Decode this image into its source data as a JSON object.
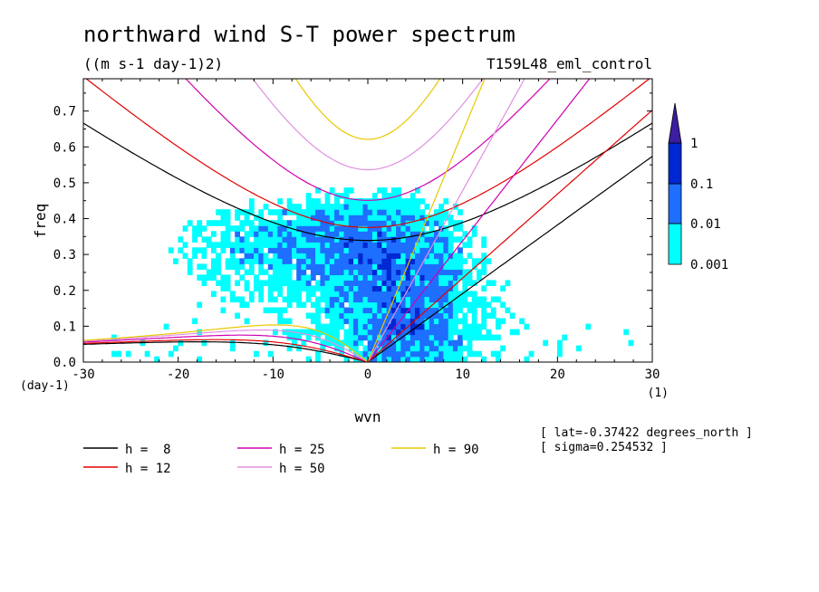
{
  "chart_data": {
    "type": "heatmap",
    "title": "northward wind S-T power spectrum",
    "subtitle": "((m s-1 day-1)2)",
    "run_label": "T159L48_eml_control",
    "xlabel": "wvn",
    "ylabel": "freq",
    "x_unit": "(1)",
    "y_unit": "(day-1)",
    "xlim": [
      -30,
      30
    ],
    "ylim": [
      0,
      0.79
    ],
    "x_ticks": [
      -30,
      -20,
      -10,
      0,
      10,
      20,
      30
    ],
    "x_tick_labels": [
      "-30",
      "-20",
      "-10",
      "0",
      "10",
      "20",
      "30"
    ],
    "y_ticks": [
      0,
      0.1,
      0.2,
      0.3,
      0.4,
      0.5,
      0.6,
      0.7
    ],
    "y_tick_labels": [
      "0.0",
      "0.1",
      "0.2",
      "0.3",
      "0.4",
      "0.5",
      "0.6",
      "0.7"
    ],
    "colorbar": {
      "levels": [
        "0.001",
        "0.01",
        "0.1",
        "1"
      ],
      "colors": [
        "#00ffff",
        "#1e6eff",
        "#0028d2",
        "#3c1ea0"
      ]
    },
    "contour_colors": [
      "#00ffff",
      "#1e6eff",
      "#0028d2"
    ],
    "dispersion_curves": [
      {
        "name": "h =  8",
        "h": 8,
        "color": "#000000"
      },
      {
        "name": "h = 12",
        "h": 12,
        "color": "#e00000"
      },
      {
        "name": "h = 25",
        "h": 25,
        "color": "#d000b0"
      },
      {
        "name": "h = 50",
        "h": 50,
        "color": "#e090e0"
      },
      {
        "name": "h = 90",
        "h": 90,
        "color": "#e8c800"
      }
    ],
    "info": [
      "[ lat=-0.37422 degrees_north ]",
      "[ sigma=0.254532 ]"
    ]
  }
}
